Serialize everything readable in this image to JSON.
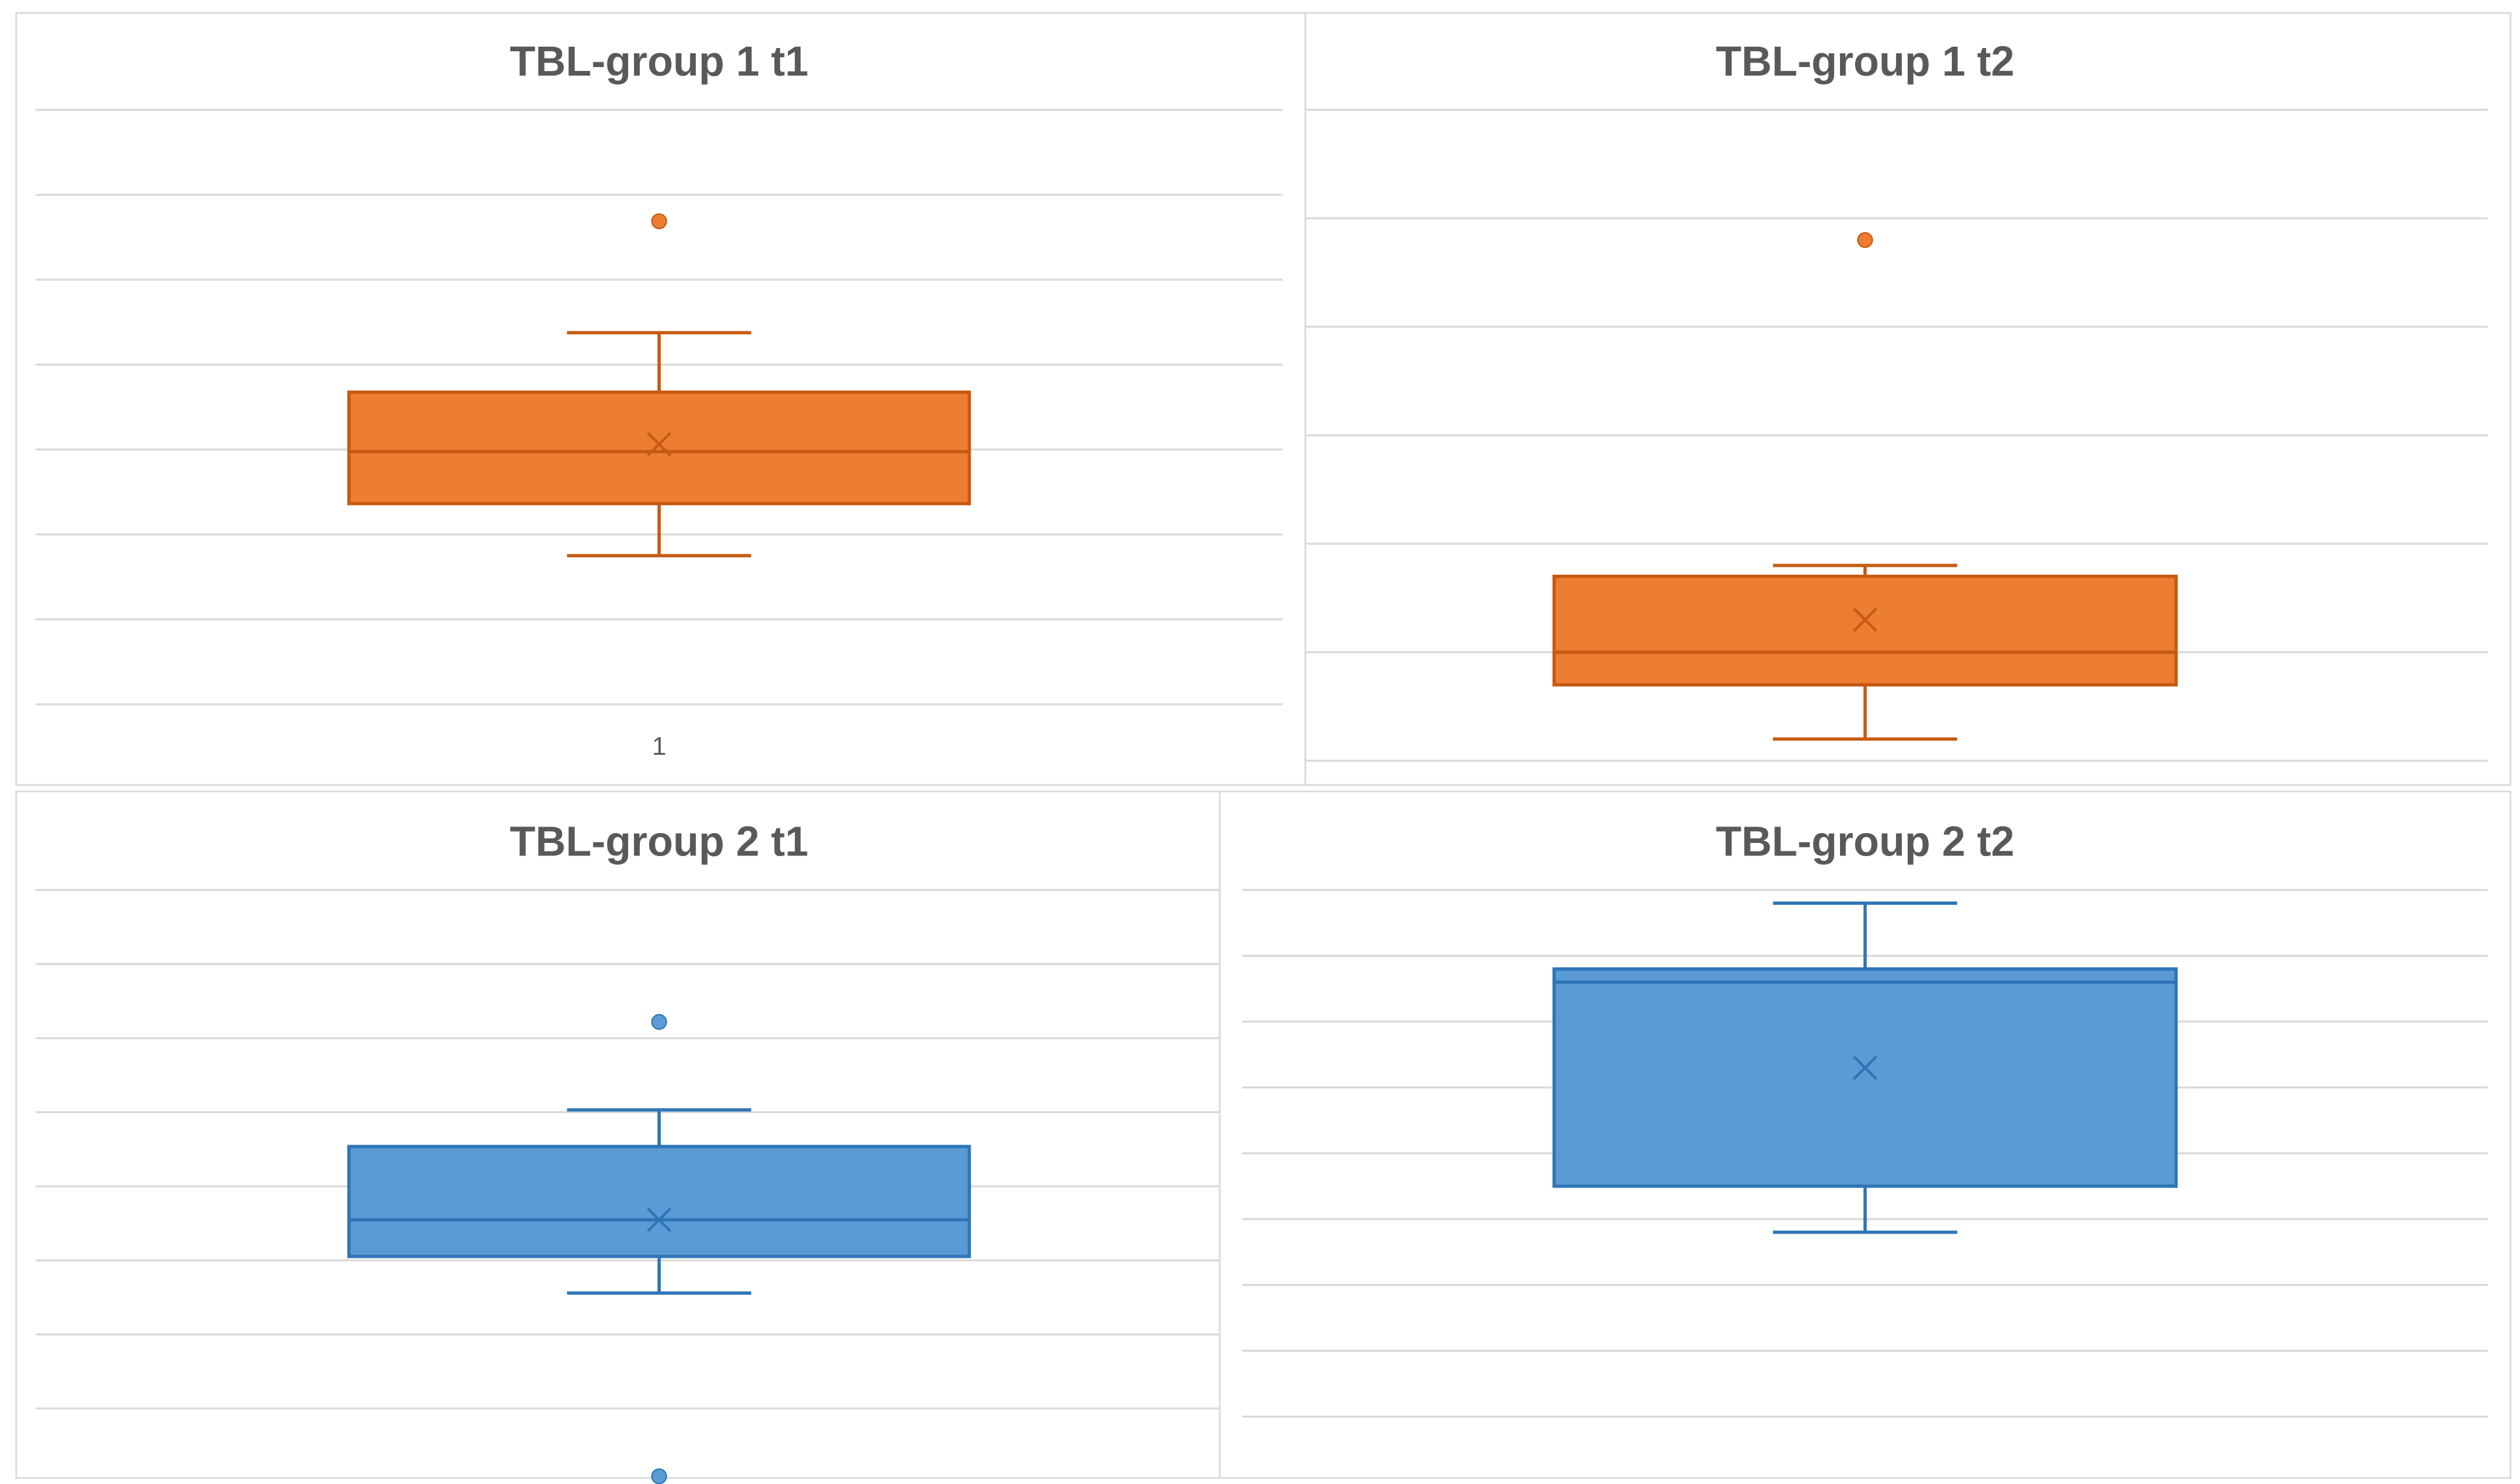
{
  "colors": {
    "orange_fill": "#ED7D31",
    "orange_stroke": "#C55A11",
    "blue_fill": "#5B9BD5",
    "blue_stroke": "#2E75B6",
    "gridline": "#D9D9D9",
    "title_text": "#595959",
    "panel_border": "#D9D9D9"
  },
  "chart_data": [
    {
      "type": "box",
      "title": "TBL-group 1 t1",
      "categories": [
        "1"
      ],
      "color": "orange",
      "ylim": [
        0,
        8
      ],
      "grid": true,
      "gridline_count": 8,
      "box": {
        "whisker_low": 2.0,
        "q1": 2.7,
        "median": 3.4,
        "q3": 4.2,
        "whisker_high": 5.0,
        "mean": 3.5
      },
      "outliers": [
        6.5
      ],
      "ylabel": "",
      "xlabel": ""
    },
    {
      "type": "box",
      "title": "TBL-group 1 t2",
      "categories": [],
      "color": "orange",
      "ylim": [
        0,
        6
      ],
      "grid": true,
      "gridline_count": 7,
      "box": {
        "whisker_low": 0.2,
        "q1": 0.7,
        "median": 1.0,
        "q3": 1.7,
        "whisker_high": 1.8,
        "mean": 1.3
      },
      "outliers": [
        4.8
      ],
      "ylabel": "",
      "xlabel": ""
    },
    {
      "type": "box",
      "title": "TBL-group 2 t1",
      "categories": [],
      "color": "blue",
      "ylim": [
        0,
        8
      ],
      "grid": true,
      "gridline_count": 8,
      "box": {
        "whisker_low": 2.5,
        "q1": 3.0,
        "median": 3.5,
        "q3": 4.5,
        "whisker_high": 5.0,
        "mean": 3.5
      },
      "outliers": [
        6.2,
        0.0
      ],
      "ylabel": "",
      "xlabel": ""
    },
    {
      "type": "box",
      "title": "TBL-group 2 t2",
      "categories": [],
      "color": "blue",
      "ylim": [
        0,
        8
      ],
      "grid": true,
      "gridline_count": 9,
      "box": {
        "whisker_low": 2.8,
        "q1": 3.5,
        "median": 6.6,
        "q3": 6.8,
        "whisker_high": 7.8,
        "mean": 5.3
      },
      "outliers": [],
      "ylabel": "",
      "xlabel": ""
    }
  ]
}
